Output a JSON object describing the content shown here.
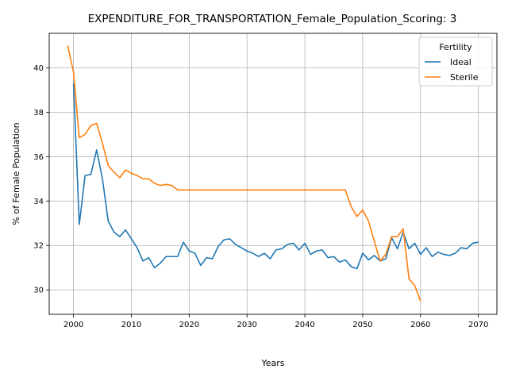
{
  "chart_data": {
    "type": "line",
    "title": "EXPENDITURE_FOR_TRANSPORTATION_Female_Population_Scoring: 3",
    "xlabel": "Years",
    "ylabel": "% of Female Population",
    "xlim": [
      1995.8,
      2073.2
    ],
    "ylim": [
      28.9,
      41.55
    ],
    "xticks": [
      2000,
      2010,
      2020,
      2030,
      2040,
      2050,
      2060,
      2070
    ],
    "yticks": [
      30,
      32,
      34,
      36,
      38,
      40
    ],
    "grid": true,
    "legend": {
      "title": "Fertility",
      "placement": "top-right"
    },
    "series": [
      {
        "name": "Ideal",
        "color": "#1f77b4",
        "x": [
          2000,
          2001,
          2002,
          2003,
          2004,
          2005,
          2006,
          2007,
          2008,
          2009,
          2010,
          2011,
          2012,
          2013,
          2014,
          2015,
          2016,
          2017,
          2018,
          2019,
          2020,
          2021,
          2022,
          2023,
          2024,
          2025,
          2026,
          2027,
          2028,
          2029,
          2030,
          2031,
          2032,
          2033,
          2034,
          2035,
          2036,
          2037,
          2038,
          2039,
          2040,
          2041,
          2042,
          2043,
          2044,
          2045,
          2046,
          2047,
          2048,
          2049,
          2050,
          2051,
          2052,
          2053,
          2054,
          2055,
          2056,
          2057,
          2058,
          2059,
          2060,
          2061,
          2062,
          2063,
          2064,
          2065,
          2066,
          2067,
          2068,
          2069,
          2070
        ],
        "y": [
          39.3,
          32.95,
          35.15,
          35.2,
          36.3,
          35.0,
          33.1,
          32.6,
          32.4,
          32.7,
          32.3,
          31.9,
          31.3,
          31.45,
          31.0,
          31.2,
          31.5,
          31.5,
          31.5,
          32.15,
          31.75,
          31.65,
          31.1,
          31.45,
          31.4,
          31.95,
          32.25,
          32.3,
          32.05,
          31.9,
          31.75,
          31.65,
          31.5,
          31.65,
          31.4,
          31.8,
          31.85,
          32.05,
          32.1,
          31.8,
          32.1,
          31.6,
          31.75,
          31.8,
          31.45,
          31.5,
          31.25,
          31.35,
          31.05,
          30.95,
          31.65,
          31.35,
          31.55,
          31.3,
          31.4,
          32.35,
          31.85,
          32.6,
          31.85,
          32.1,
          31.6,
          31.9,
          31.5,
          31.7,
          31.6,
          31.55,
          31.65,
          31.9,
          31.85,
          32.1,
          32.15
        ]
      },
      {
        "name": "Sterile",
        "color": "#ff7f0e",
        "x": [
          1999,
          2000,
          2001,
          2002,
          2003,
          2004,
          2005,
          2006,
          2007,
          2008,
          2009,
          2010,
          2011,
          2012,
          2013,
          2014,
          2015,
          2016,
          2017,
          2018,
          2019,
          2020,
          2021,
          2022,
          2023,
          2024,
          2025,
          2026,
          2027,
          2028,
          2029,
          2030,
          2031,
          2032,
          2033,
          2034,
          2035,
          2036,
          2037,
          2038,
          2039,
          2040,
          2041,
          2042,
          2043,
          2044,
          2045,
          2046,
          2047,
          2048,
          2049,
          2050,
          2051,
          2052,
          2053,
          2054,
          2055,
          2056,
          2057,
          2058,
          2059,
          2060
        ],
        "y": [
          41.0,
          39.8,
          36.85,
          37.0,
          37.4,
          37.5,
          36.6,
          35.6,
          35.3,
          35.05,
          35.4,
          35.25,
          35.15,
          35.0,
          35.0,
          34.8,
          34.7,
          34.75,
          34.7,
          34.5,
          34.5,
          34.5,
          34.5,
          34.5,
          34.5,
          34.5,
          34.5,
          34.5,
          34.5,
          34.5,
          34.5,
          34.5,
          34.5,
          34.5,
          34.5,
          34.5,
          34.5,
          34.5,
          34.5,
          34.5,
          34.5,
          34.5,
          34.5,
          34.5,
          34.5,
          34.5,
          34.5,
          34.5,
          34.5,
          33.75,
          33.3,
          33.6,
          33.1,
          32.2,
          31.3,
          31.6,
          32.4,
          32.4,
          32.75,
          30.5,
          30.2,
          29.5
        ]
      }
    ]
  }
}
